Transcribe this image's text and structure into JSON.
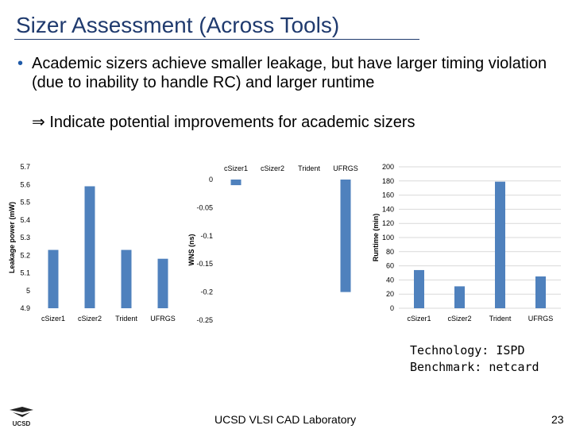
{
  "slide": {
    "title": "Sizer Assessment (Across Tools)",
    "bullet": "Academic sizers achieve smaller leakage, but have larger timing violation (due to inability to handle RC) and larger runtime",
    "implies_symbol": "⇒",
    "implies_text": "Indicate potential improvements for academic sizers",
    "tech_line": "Technology: ISPD",
    "bench_line": "Benchmark: netcard",
    "footer": "UCSD VLSI CAD Laboratory",
    "page_number": "23",
    "logo_text": "UCSD"
  },
  "colors": {
    "bar": "#4f81bd",
    "title": "#1f3a6e",
    "grid": "#d9d9d9"
  },
  "chart_data": [
    {
      "type": "bar",
      "categories": [
        "cSizer1",
        "cSizer2",
        "Trident",
        "UFRGS"
      ],
      "values": [
        5.23,
        5.59,
        5.23,
        5.18
      ],
      "ylabel": "Leakage power (mW)",
      "ylim": [
        4.9,
        5.7
      ],
      "yticks": [
        "4.9",
        "5",
        "5.1",
        "5.2",
        "5.3",
        "5.4",
        "5.5",
        "5.6",
        "5.7"
      ],
      "grid": false,
      "category_axis": "bottom"
    },
    {
      "type": "bar",
      "categories": [
        "cSizer1",
        "cSizer2",
        "Trident",
        "UFRGS"
      ],
      "values": [
        -0.01,
        0,
        0,
        -0.2
      ],
      "ylabel": "WNS (ns)",
      "ylim": [
        -0.25,
        0
      ],
      "yticks": [
        "-0.25",
        "-0.2",
        "-0.15",
        "-0.1",
        "-0.05",
        "0"
      ],
      "grid": false,
      "category_axis": "top"
    },
    {
      "type": "bar",
      "categories": [
        "cSizer1",
        "cSizer2",
        "Trident",
        "UFRGS"
      ],
      "values": [
        54,
        31,
        179,
        45
      ],
      "ylabel": "Runtime (min)",
      "ylim": [
        0,
        200
      ],
      "yticks": [
        "0",
        "20",
        "40",
        "60",
        "80",
        "100",
        "120",
        "140",
        "160",
        "180",
        "200"
      ],
      "grid": true,
      "category_axis": "bottom"
    }
  ]
}
